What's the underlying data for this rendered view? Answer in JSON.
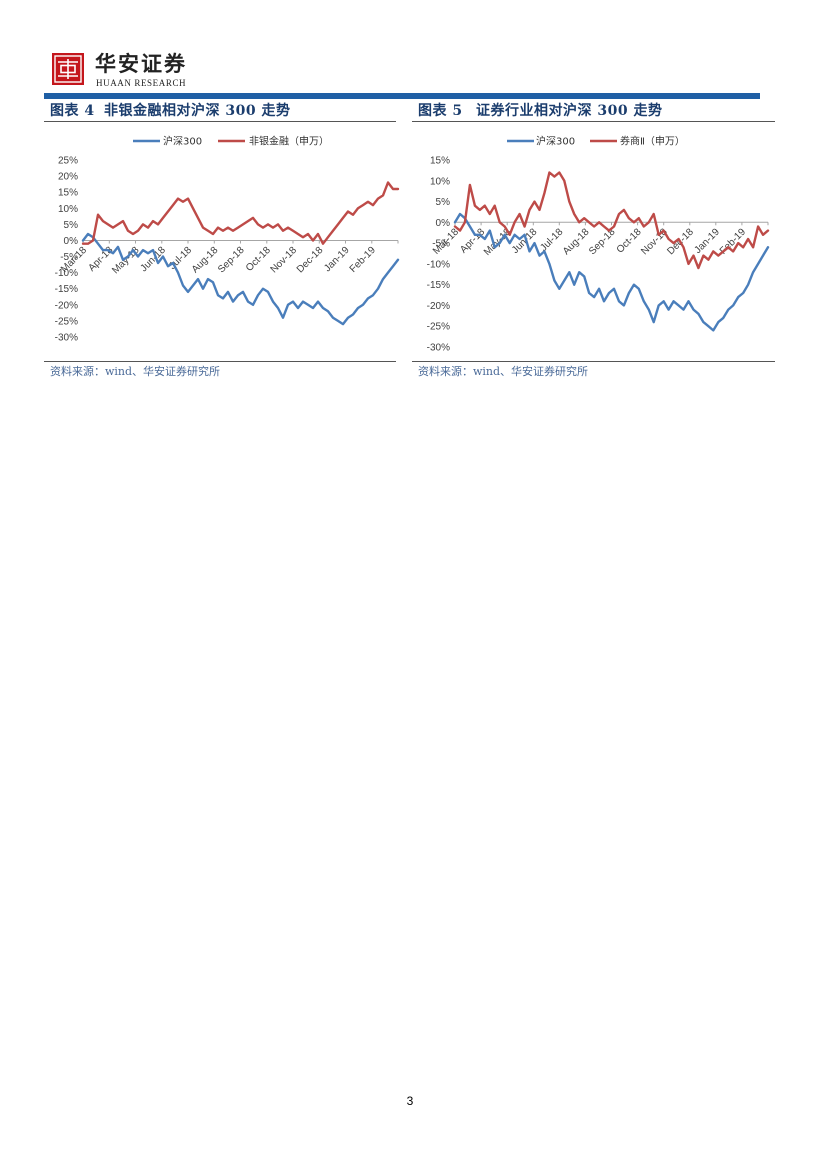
{
  "header": {
    "logo_text": "华安证券",
    "logo_subtext": "HUAAN RESEARCH"
  },
  "colors": {
    "brand_blue": "#1f5fa5",
    "title_navy": "#1b3d6d",
    "seal_red": "#c4161c"
  },
  "page_number": "3",
  "chart_data": [
    {
      "type": "line",
      "figure_label": "图表 4",
      "title": "非银金融相对沪深 300 走势",
      "source": "资料来源：wind、华安证券研究所",
      "xlabel": "",
      "ylabel": "",
      "ylim": [
        -30,
        25
      ],
      "y_tick_labels": [
        "25%",
        "20%",
        "15%",
        "10%",
        "5%",
        "0%",
        "-5%",
        "-10%",
        "-15%",
        "-20%",
        "-25%",
        "-30%"
      ],
      "x_tick_labels": [
        "Mar-18",
        "Apr-18",
        "May-18",
        "Jun-18",
        "Jul-18",
        "Aug-18",
        "Sep-18",
        "Oct-18",
        "Nov-18",
        "Dec-18",
        "Jan-19",
        "Feb-19"
      ],
      "legend_position": "top-center",
      "grid": false,
      "series": [
        {
          "name": "沪深300",
          "color": "#4a7ebb",
          "values": [
            0,
            2,
            1,
            -1,
            -3,
            -3,
            -4,
            -2,
            -6,
            -5,
            -3,
            -5,
            -3,
            -4,
            -3,
            -7,
            -5,
            -8,
            -7,
            -10,
            -14,
            -16,
            -14,
            -12,
            -15,
            -12,
            -13,
            -17,
            -18,
            -16,
            -19,
            -17,
            -16,
            -19,
            -20,
            -17,
            -15,
            -16,
            -19,
            -21,
            -24,
            -20,
            -19,
            -21,
            -19,
            -20,
            -21,
            -19,
            -21,
            -22,
            -24,
            -25,
            -26,
            -24,
            -23,
            -21,
            -20,
            -18,
            -17,
            -15,
            -12,
            -10,
            -8,
            -6
          ]
        },
        {
          "name": "非银金融（申万）",
          "color": "#be4b48",
          "values": [
            -1,
            -1,
            0,
            8,
            6,
            5,
            4,
            5,
            6,
            3,
            2,
            3,
            5,
            4,
            6,
            5,
            7,
            9,
            11,
            13,
            12,
            13,
            10,
            7,
            4,
            3,
            2,
            4,
            3,
            4,
            3,
            4,
            5,
            6,
            7,
            5,
            4,
            5,
            4,
            5,
            3,
            4,
            3,
            2,
            1,
            2,
            0,
            2,
            -1,
            1,
            3,
            5,
            7,
            9,
            8,
            10,
            11,
            12,
            11,
            13,
            14,
            18,
            16,
            16
          ]
        }
      ]
    },
    {
      "type": "line",
      "figure_label": "图表 5",
      "title": "证券行业相对沪深 300 走势",
      "source": "资料来源：wind、华安证券研究所",
      "xlabel": "",
      "ylabel": "",
      "ylim": [
        -30,
        15
      ],
      "y_tick_labels": [
        "15%",
        "10%",
        "5%",
        "0%",
        "-5%",
        "-10%",
        "-15%",
        "-20%",
        "-25%",
        "-30%"
      ],
      "x_tick_labels": [
        "Mar-18",
        "Apr-18",
        "May-18",
        "Jun-18",
        "Jul-18",
        "Aug-18",
        "Sep-18",
        "Oct-18",
        "Nov-18",
        "Dec-18",
        "Jan-19",
        "Feb-19"
      ],
      "legend_position": "top-center",
      "grid": false,
      "series": [
        {
          "name": "沪深300",
          "color": "#4a7ebb",
          "values": [
            0,
            2,
            1,
            -1,
            -3,
            -3,
            -4,
            -2,
            -6,
            -5,
            -3,
            -5,
            -3,
            -4,
            -3,
            -7,
            -5,
            -8,
            -7,
            -10,
            -14,
            -16,
            -14,
            -12,
            -15,
            -12,
            -13,
            -17,
            -18,
            -16,
            -19,
            -17,
            -16,
            -19,
            -20,
            -17,
            -15,
            -16,
            -19,
            -21,
            -24,
            -20,
            -19,
            -21,
            -19,
            -20,
            -21,
            -19,
            -21,
            -22,
            -24,
            -25,
            -26,
            -24,
            -23,
            -21,
            -20,
            -18,
            -17,
            -15,
            -12,
            -10,
            -8,
            -6
          ]
        },
        {
          "name": "券商Ⅱ（申万）",
          "color": "#be4b48",
          "values": [
            -1,
            -2,
            0,
            9,
            4,
            3,
            4,
            2,
            4,
            0,
            -1,
            -3,
            0,
            2,
            -1,
            3,
            5,
            3,
            7,
            12,
            11,
            12,
            10,
            5,
            2,
            0,
            1,
            0,
            -1,
            0,
            -1,
            -2,
            -1,
            2,
            3,
            1,
            0,
            1,
            -1,
            0,
            2,
            -3,
            -2,
            -4,
            -5,
            -4,
            -6,
            -10,
            -8,
            -11,
            -8,
            -9,
            -7,
            -8,
            -7,
            -6,
            -7,
            -5,
            -6,
            -4,
            -6,
            -1,
            -3,
            -2
          ]
        }
      ]
    }
  ]
}
